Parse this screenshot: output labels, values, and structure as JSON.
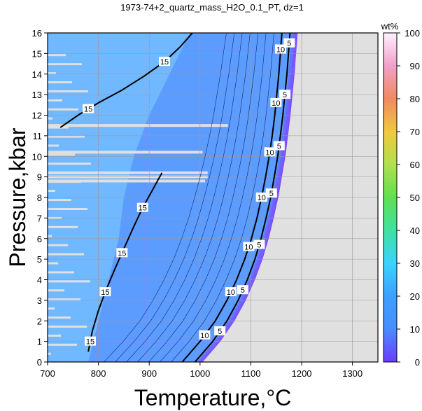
{
  "chart_data": {
    "type": "heatmap",
    "title": "1973-74+2_quartz_mass_H2O_0.1_PT, dz=1",
    "xlabel": "Temperature,°C",
    "ylabel": "Pressure,kbar",
    "xlim": [
      700,
      1350
    ],
    "ylim": [
      0,
      16
    ],
    "x_ticks": [
      700,
      800,
      900,
      1000,
      1100,
      1200,
      1300
    ],
    "y_ticks": [
      0,
      1,
      2,
      3,
      4,
      5,
      6,
      7,
      8,
      9,
      10,
      11,
      12,
      13,
      14,
      15,
      16
    ],
    "grid": true,
    "colorbar": {
      "title": "wt%",
      "range": [
        0,
        100
      ],
      "ticks": [
        0,
        10,
        20,
        30,
        40,
        50,
        60,
        70,
        80,
        90,
        100
      ]
    },
    "series": [
      {
        "name": "10",
        "points": [
          [
            965,
            0
          ],
          [
            1000,
            1
          ],
          [
            1030,
            2
          ],
          [
            1053,
            3
          ],
          [
            1072,
            4
          ],
          [
            1088,
            5
          ],
          [
            1101,
            6
          ],
          [
            1112,
            7
          ],
          [
            1121,
            8
          ],
          [
            1129,
            9
          ],
          [
            1136,
            10
          ],
          [
            1142,
            11
          ],
          [
            1147,
            12
          ],
          [
            1151,
            13
          ],
          [
            1155,
            14
          ],
          [
            1158,
            15
          ],
          [
            1161,
            16
          ]
        ]
      },
      {
        "name": "5",
        "points": [
          [
            990,
            0
          ],
          [
            1025,
            1
          ],
          [
            1053,
            2
          ],
          [
            1075,
            3
          ],
          [
            1093,
            4
          ],
          [
            1108,
            5
          ],
          [
            1120,
            6
          ],
          [
            1130,
            7
          ],
          [
            1139,
            8
          ],
          [
            1146,
            9
          ],
          [
            1153,
            10
          ],
          [
            1158,
            11
          ],
          [
            1163,
            12
          ],
          [
            1167,
            13
          ],
          [
            1171,
            14
          ],
          [
            1174,
            15
          ],
          [
            1177,
            16
          ]
        ]
      },
      {
        "name": "15",
        "points": [
          [
            780,
            0.5
          ],
          [
            788,
            1.5
          ],
          [
            800,
            2.5
          ],
          [
            815,
            3.5
          ],
          [
            832,
            4.5
          ],
          [
            850,
            5.5
          ],
          [
            868,
            6.5
          ],
          [
            887,
            7.5
          ],
          [
            905,
            8.3
          ],
          [
            925,
            9.2
          ]
        ]
      },
      {
        "name": "15",
        "points": [
          [
            725,
            11.4
          ],
          [
            760,
            12
          ],
          [
            800,
            12.6
          ],
          [
            845,
            13.2
          ],
          [
            890,
            13.9
          ],
          [
            930,
            14.6
          ],
          [
            960,
            15.3
          ],
          [
            985,
            16
          ]
        ]
      }
    ],
    "contour_labels": [
      "10",
      "5",
      "15",
      "15"
    ]
  }
}
